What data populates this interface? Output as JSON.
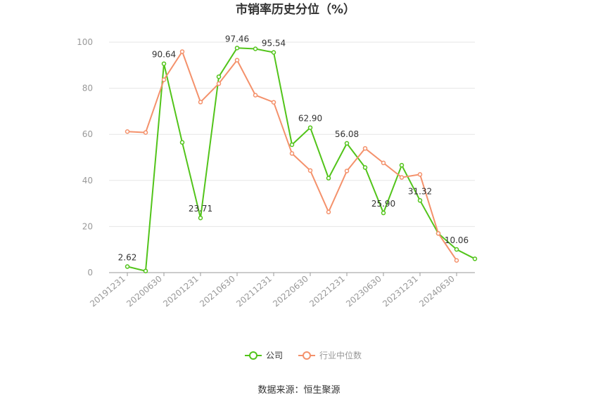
{
  "chart_data": {
    "type": "line",
    "title": "市销率历史分位（%）",
    "x": [
      "20191231",
      "20200331",
      "20200630",
      "20200930",
      "20201231",
      "20210331",
      "20210630",
      "20210930",
      "20211231",
      "20220331",
      "20220630",
      "20220930",
      "20221231",
      "20230331",
      "20230630",
      "20230930",
      "20231231",
      "20240331",
      "20240630",
      "20240930"
    ],
    "x_tick_labels": [
      "20191231",
      "20200630",
      "20201231",
      "20210630",
      "20211231",
      "20220630",
      "20221231",
      "20230630",
      "20231231",
      "20240630"
    ],
    "series": [
      {
        "name": "公司",
        "color": "#52c41a",
        "values": [
          2.62,
          0.7,
          90.64,
          56.5,
          23.71,
          85.0,
          97.46,
          97.1,
          95.54,
          55.5,
          62.9,
          41.0,
          56.08,
          45.6,
          25.9,
          46.6,
          31.32,
          17.0,
          10.06,
          6.0
        ]
      },
      {
        "name": "行业中位数",
        "color": "#f4916b",
        "values": [
          61.2,
          60.8,
          83.7,
          95.9,
          74.0,
          82.0,
          92.2,
          77.0,
          73.9,
          51.7,
          44.3,
          26.3,
          44.1,
          53.9,
          47.6,
          41.3,
          42.6,
          17.0,
          5.3,
          null
        ]
      }
    ],
    "data_labels": [
      {
        "series": 0,
        "index": 0,
        "text": "2.62"
      },
      {
        "series": 0,
        "index": 2,
        "text": "90.64"
      },
      {
        "series": 0,
        "index": 4,
        "text": "23.71"
      },
      {
        "series": 0,
        "index": 6,
        "text": "97.46"
      },
      {
        "series": 0,
        "index": 8,
        "text": "95.54"
      },
      {
        "series": 0,
        "index": 10,
        "text": "62.90"
      },
      {
        "series": 0,
        "index": 12,
        "text": "56.08"
      },
      {
        "series": 0,
        "index": 14,
        "text": "25.90"
      },
      {
        "series": 0,
        "index": 16,
        "text": "31.32"
      },
      {
        "series": 0,
        "index": 18,
        "text": "10.06"
      }
    ],
    "ylim": [
      0,
      100
    ],
    "yticks": [
      0,
      20,
      40,
      60,
      80,
      100
    ],
    "grid": true,
    "legend_position": "bottom-center"
  },
  "source": "数据来源：恒生聚源"
}
